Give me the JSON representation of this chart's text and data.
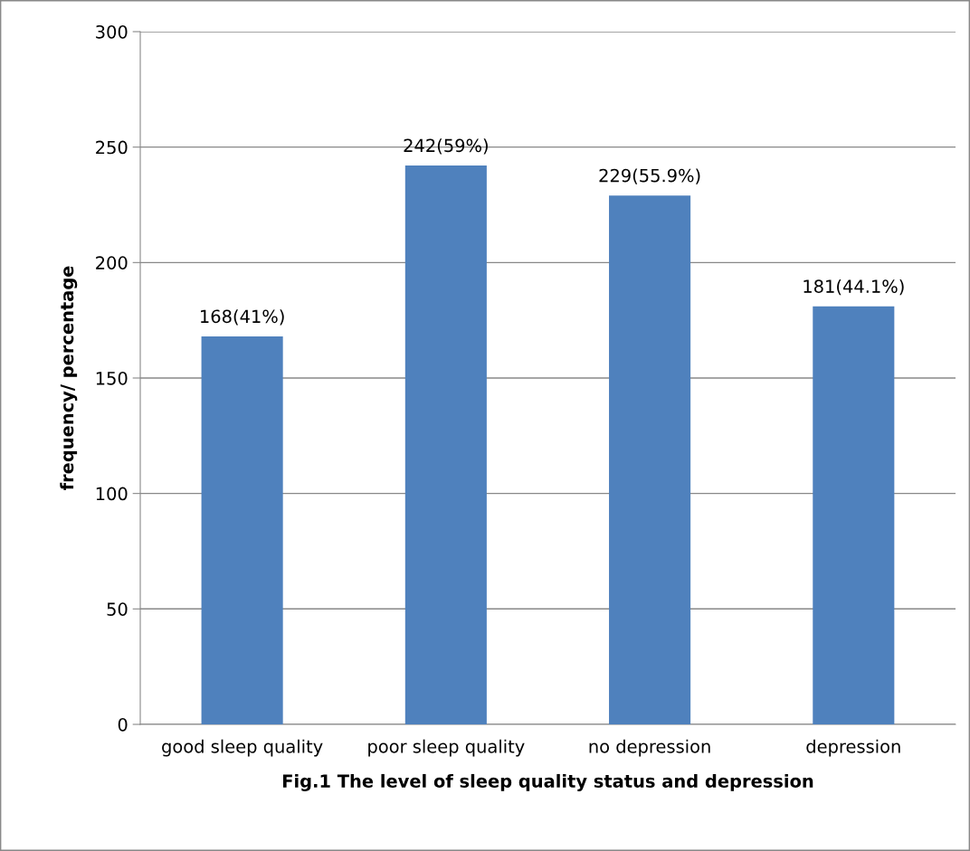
{
  "chart_data": {
    "type": "bar",
    "categories": [
      "good sleep quality",
      "poor sleep quality",
      "no depression",
      "depression"
    ],
    "values": [
      168,
      242,
      229,
      181
    ],
    "value_labels": [
      "168(41%)",
      "242(59%)",
      "229(55.9%)",
      "181(44.1%)"
    ],
    "color": "#4f81bd",
    "ylabel": "frequency/ percentage",
    "xlabel": "Fig.1 The level of sleep quality status and depression",
    "ylim": [
      0,
      300
    ],
    "yticks": [
      0,
      50,
      100,
      150,
      200,
      250,
      300
    ],
    "grid": "y",
    "legend": false
  }
}
